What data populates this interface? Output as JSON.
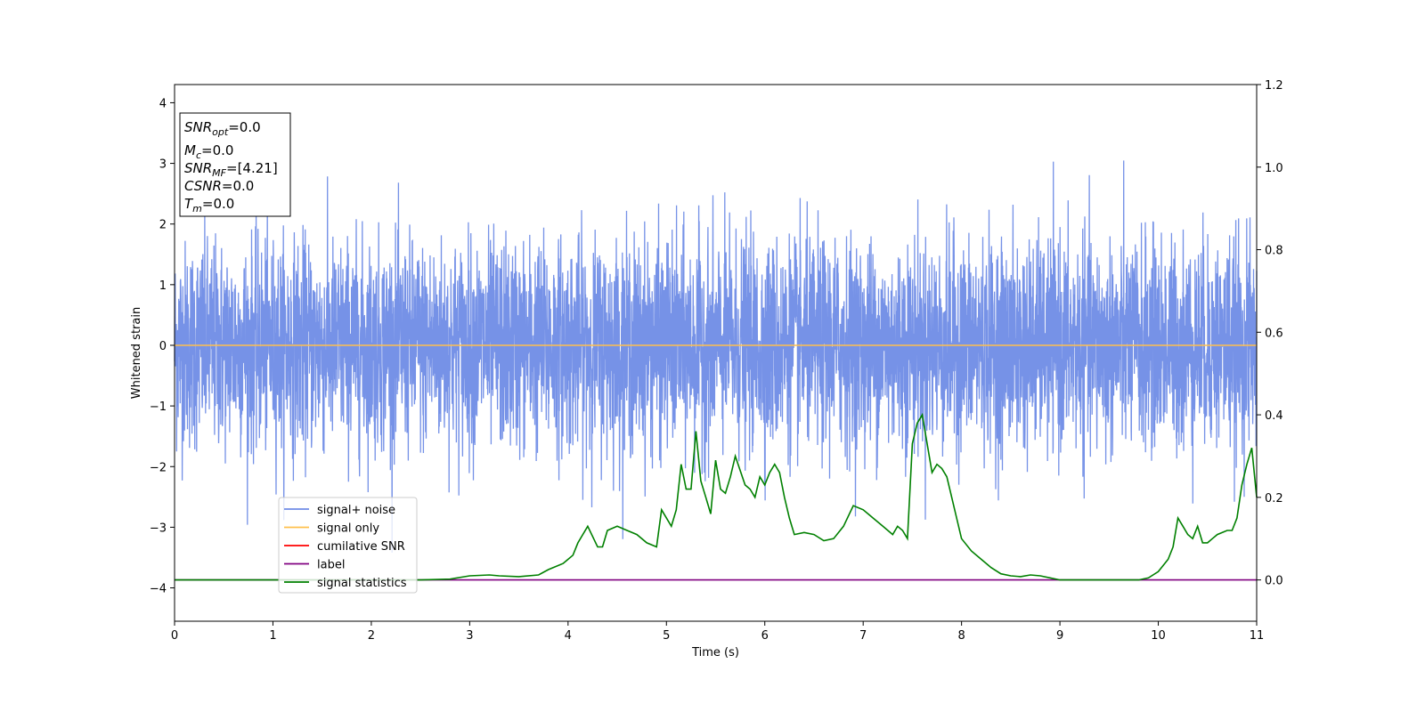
{
  "chart_data": {
    "type": "line",
    "xlabel": "Time (s)",
    "ylabel": "Whitened strain",
    "xlim": [
      0,
      11
    ],
    "ylim": [
      -4.55,
      4.3
    ],
    "y2lim": [
      -0.1,
      1.2
    ],
    "x_ticks": [
      0,
      1,
      2,
      3,
      4,
      5,
      6,
      7,
      8,
      9,
      10,
      11
    ],
    "y_ticks": [
      -4,
      -3,
      -2,
      -1,
      0,
      1,
      2,
      3,
      4
    ],
    "y2_ticks": [
      0.0,
      0.2,
      0.4,
      0.6,
      0.8,
      1.0,
      1.2
    ],
    "grid": false,
    "legend_position": "lower-left",
    "info_box": {
      "lines": [
        {
          "var": "SNR",
          "sub": "opt",
          "val": "=0.0"
        },
        {
          "var": "M",
          "sub": "c",
          "val": "=0.0"
        },
        {
          "var": "SNR",
          "sub": "MF",
          "val": "=[4.21]"
        },
        {
          "var": "CSNR",
          "sub": "",
          "val": "=0.0"
        },
        {
          "var": "T",
          "sub": "m",
          "val": "=0.0"
        }
      ]
    },
    "series": [
      {
        "name": "signal+ noise",
        "color": "#6f8ce6",
        "axis": "left",
        "kind": "noise",
        "duration": 11,
        "envelope_approx": {
          "typical_min": -2.3,
          "typical_max": 2.4,
          "extreme_min": -4.2,
          "extreme_max": 3.93
        }
      },
      {
        "name": "signal only",
        "color": "#ffc04d",
        "axis": "left",
        "x": [
          0,
          11
        ],
        "y": [
          0,
          0
        ]
      },
      {
        "name": "cumilative SNR",
        "color": "#ff0000",
        "axis": "left",
        "x": [],
        "y": []
      },
      {
        "name": "label",
        "color": "#800080",
        "axis": "right",
        "x": [
          0,
          11
        ],
        "y": [
          0,
          0
        ]
      },
      {
        "name": "signal statistics",
        "color": "#008000",
        "axis": "right",
        "x": [
          0,
          1,
          2,
          2.5,
          2.8,
          3.0,
          3.2,
          3.3,
          3.5,
          3.7,
          3.8,
          3.95,
          4.05,
          4.1,
          4.2,
          4.3,
          4.35,
          4.4,
          4.5,
          4.6,
          4.7,
          4.8,
          4.9,
          4.95,
          5.05,
          5.1,
          5.15,
          5.2,
          5.25,
          5.3,
          5.35,
          5.4,
          5.45,
          5.5,
          5.55,
          5.6,
          5.65,
          5.7,
          5.8,
          5.85,
          5.9,
          5.95,
          6.0,
          6.05,
          6.1,
          6.15,
          6.2,
          6.25,
          6.3,
          6.4,
          6.5,
          6.6,
          6.7,
          6.8,
          6.9,
          7.0,
          7.05,
          7.1,
          7.2,
          7.3,
          7.35,
          7.4,
          7.45,
          7.5,
          7.55,
          7.6,
          7.7,
          7.75,
          7.8,
          7.85,
          7.9,
          7.95,
          8.0,
          8.1,
          8.2,
          8.3,
          8.4,
          8.5,
          8.6,
          8.7,
          8.8,
          8.9,
          9.0,
          9.2,
          9.4,
          9.6,
          9.8,
          9.9,
          10.0,
          10.1,
          10.15,
          10.2,
          10.25,
          10.3,
          10.35,
          10.4,
          10.45,
          10.5,
          10.55,
          10.6,
          10.7,
          10.75,
          10.8,
          10.85,
          10.9,
          10.95,
          11.0
        ],
        "y": [
          0.0,
          0.0,
          0.0,
          0.0,
          0.002,
          0.01,
          0.012,
          0.01,
          0.008,
          0.012,
          0.025,
          0.04,
          0.06,
          0.09,
          0.13,
          0.08,
          0.08,
          0.12,
          0.13,
          0.12,
          0.11,
          0.09,
          0.08,
          0.17,
          0.13,
          0.17,
          0.28,
          0.22,
          0.22,
          0.36,
          0.24,
          0.2,
          0.16,
          0.29,
          0.22,
          0.21,
          0.25,
          0.3,
          0.23,
          0.22,
          0.2,
          0.25,
          0.23,
          0.26,
          0.28,
          0.26,
          0.2,
          0.15,
          0.11,
          0.115,
          0.11,
          0.095,
          0.1,
          0.13,
          0.18,
          0.17,
          0.16,
          0.15,
          0.13,
          0.11,
          0.13,
          0.12,
          0.1,
          0.33,
          0.38,
          0.4,
          0.26,
          0.28,
          0.27,
          0.25,
          0.2,
          0.15,
          0.1,
          0.07,
          0.05,
          0.03,
          0.015,
          0.01,
          0.008,
          0.012,
          0.01,
          0.005,
          0.0,
          0.0,
          0.0,
          0.0,
          0.0,
          0.005,
          0.02,
          0.05,
          0.08,
          0.15,
          0.13,
          0.11,
          0.1,
          0.13,
          0.09,
          0.09,
          0.1,
          0.11,
          0.12,
          0.12,
          0.15,
          0.23,
          0.28,
          0.32,
          0.2
        ]
      }
    ]
  }
}
